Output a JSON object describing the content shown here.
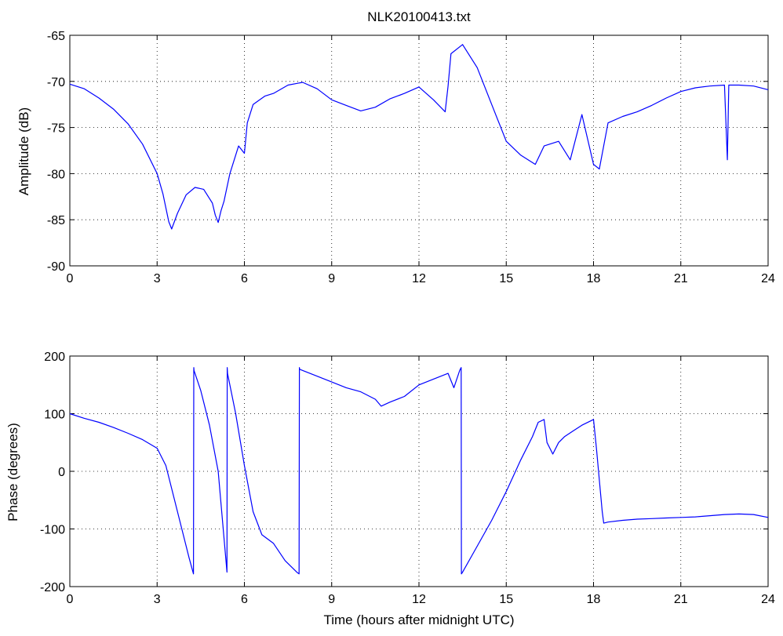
{
  "title": "NLK20100413.txt",
  "line_color": "#0000ff",
  "chart_data": [
    {
      "type": "line",
      "title": "NLK20100413.txt",
      "xlabel": "",
      "ylabel": "Amplitude (dB)",
      "xlim": [
        0,
        24
      ],
      "ylim": [
        -90,
        -65
      ],
      "xticks": [
        "0",
        "3",
        "6",
        "9",
        "12",
        "15",
        "18",
        "21",
        "24"
      ],
      "yticks": [
        "-90",
        "-85",
        "-80",
        "-75",
        "-70",
        "-65"
      ],
      "grid": true,
      "series": [
        {
          "x": [
            0,
            0.5,
            1,
            1.5,
            2,
            2.5,
            3,
            3.2,
            3.4,
            3.5,
            3.7,
            4,
            4.3,
            4.6,
            4.9,
            5,
            5.1,
            5.2,
            5.3,
            5.5,
            5.8,
            6,
            6.1,
            6.3,
            6.7,
            7,
            7.5,
            8,
            8.5,
            9,
            9.5,
            10,
            10.5,
            11,
            11.5,
            12,
            12.5,
            12.9,
            13,
            13.1,
            13.5,
            14,
            14.5,
            15,
            15.5,
            16,
            16.3,
            16.8,
            17.2,
            17.6,
            18,
            18.2,
            18.5,
            19,
            19.5,
            20,
            20.5,
            21,
            21.5,
            22,
            22.5,
            22.6,
            22.65,
            22.7,
            23,
            23.5,
            24
          ],
          "y": [
            -70.3,
            -70.8,
            -71.8,
            -73.0,
            -74.6,
            -76.8,
            -80.0,
            -82.2,
            -85.2,
            -86.0,
            -84.3,
            -82.3,
            -81.5,
            -81.7,
            -83.2,
            -84.5,
            -85.3,
            -84.0,
            -83.0,
            -80.0,
            -77.0,
            -77.8,
            -74.5,
            -72.5,
            -71.6,
            -71.3,
            -70.4,
            -70.1,
            -70.8,
            -72.0,
            -72.6,
            -73.2,
            -72.8,
            -71.9,
            -71.3,
            -70.6,
            -72.0,
            -73.3,
            -70.5,
            -67.0,
            -66.0,
            -68.5,
            -72.5,
            -76.5,
            -78.0,
            -79.0,
            -77.0,
            -76.5,
            -78.5,
            -73.6,
            -79.0,
            -79.5,
            -74.5,
            -73.8,
            -73.3,
            -72.6,
            -71.8,
            -71.1,
            -70.7,
            -70.5,
            -70.4,
            -78.5,
            -70.4,
            -70.4,
            -70.4,
            -70.5,
            -70.9
          ]
        }
      ]
    },
    {
      "type": "line",
      "title": "",
      "xlabel": "Time (hours after midnight UTC)",
      "ylabel": "Phase (degrees)",
      "xlim": [
        0,
        24
      ],
      "ylim": [
        -200,
        200
      ],
      "xticks": [
        "0",
        "3",
        "6",
        "9",
        "12",
        "15",
        "18",
        "21",
        "24"
      ],
      "yticks": [
        "-200",
        "-100",
        "0",
        "100",
        "200"
      ],
      "grid": true,
      "series": [
        {
          "x": [
            0,
            0.5,
            1,
            1.5,
            2,
            2.5,
            3,
            3.3,
            3.5,
            3.8,
            4.1,
            4.25,
            4.26,
            4.27,
            4.5,
            4.8,
            5.1,
            5.4,
            5.41,
            5.42,
            5.7,
            6,
            6.3,
            6.6,
            7,
            7.4,
            7.8,
            7.88,
            7.89,
            7.9,
            8.5,
            9,
            9.5,
            10,
            10.5,
            10.7,
            11,
            11.5,
            12,
            12.5,
            13,
            13.2,
            13.4,
            13.45,
            13.46,
            13.5,
            14,
            14.5,
            15,
            15.5,
            15.9,
            16.1,
            16.3,
            16.4,
            16.6,
            16.8,
            17,
            17.3,
            17.6,
            18,
            18.1,
            18.3,
            18.35,
            18.5,
            19,
            19.5,
            20,
            20.5,
            21,
            21.5,
            22,
            22.5,
            23,
            23.5,
            24
          ],
          "y": [
            100,
            92,
            85,
            76,
            66,
            55,
            40,
            10,
            -30,
            -90,
            -150,
            -178,
            180,
            175,
            140,
            80,
            0,
            -175,
            180,
            170,
            100,
            10,
            -70,
            -110,
            -125,
            -155,
            -175,
            -178,
            180,
            177,
            165,
            155,
            145,
            138,
            125,
            113,
            120,
            130,
            150,
            160,
            170,
            145,
            175,
            180,
            -178,
            -175,
            -130,
            -85,
            -35,
            20,
            60,
            85,
            90,
            50,
            30,
            50,
            60,
            70,
            80,
            90,
            40,
            -70,
            -90,
            -88,
            -85,
            -83,
            -82,
            -81,
            -80,
            -79,
            -77,
            -75,
            -74,
            -75,
            -80
          ]
        }
      ]
    }
  ]
}
